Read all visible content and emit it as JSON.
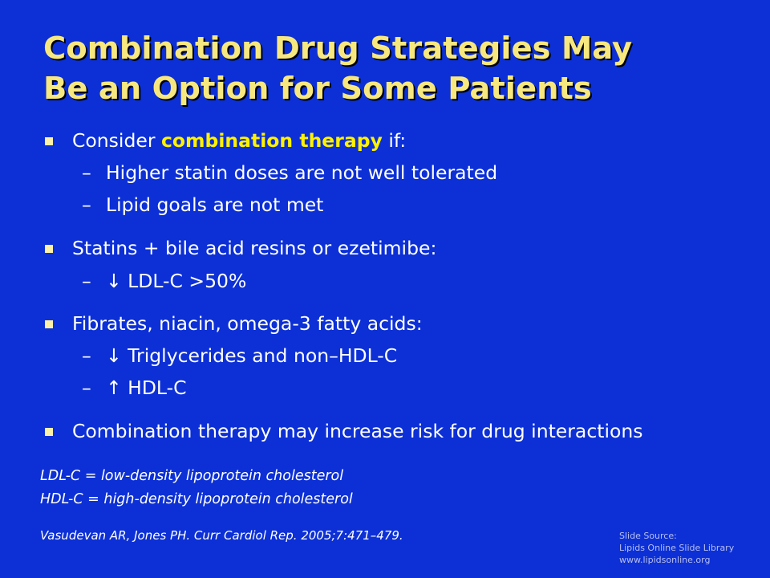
{
  "slide": {
    "title_lines": [
      "Combination Drug Strategies May",
      "Be an Option for Some Patients"
    ],
    "bullets": [
      {
        "before": "Consider ",
        "highlight": "combination therapy",
        "after": " if:",
        "subs": [
          "Higher statin doses are not well tolerated",
          "Lipid goals are not met"
        ]
      },
      {
        "text": "Statins + bile acid resins or ezetimibe:",
        "subs": [
          "↓ LDL-C >50%"
        ]
      },
      {
        "text": "Fibrates, niacin, omega-3 fatty acids:",
        "subs": [
          "↓ Triglycerides and non–HDL-C",
          "↑ HDL-C"
        ]
      },
      {
        "text": "Combination therapy may increase risk for drug interactions"
      }
    ],
    "sub_dash": "–",
    "abbreviations": [
      "LDL-C = low-density lipoprotein cholesterol",
      "HDL-C = high-density lipoprotein cholesterol"
    ],
    "reference": "Vasudevan AR, Jones PH. Curr Cardiol Rep. 2005;7:471–479.",
    "source_lines": [
      "Slide Source:",
      "Lipids Online Slide Library",
      "www.lipidsonline.org"
    ],
    "colors": {
      "background": "#0c30d6",
      "title": "#f7e77f",
      "highlight": "#fff200",
      "bullet_marker": "#fdf1a9"
    }
  }
}
